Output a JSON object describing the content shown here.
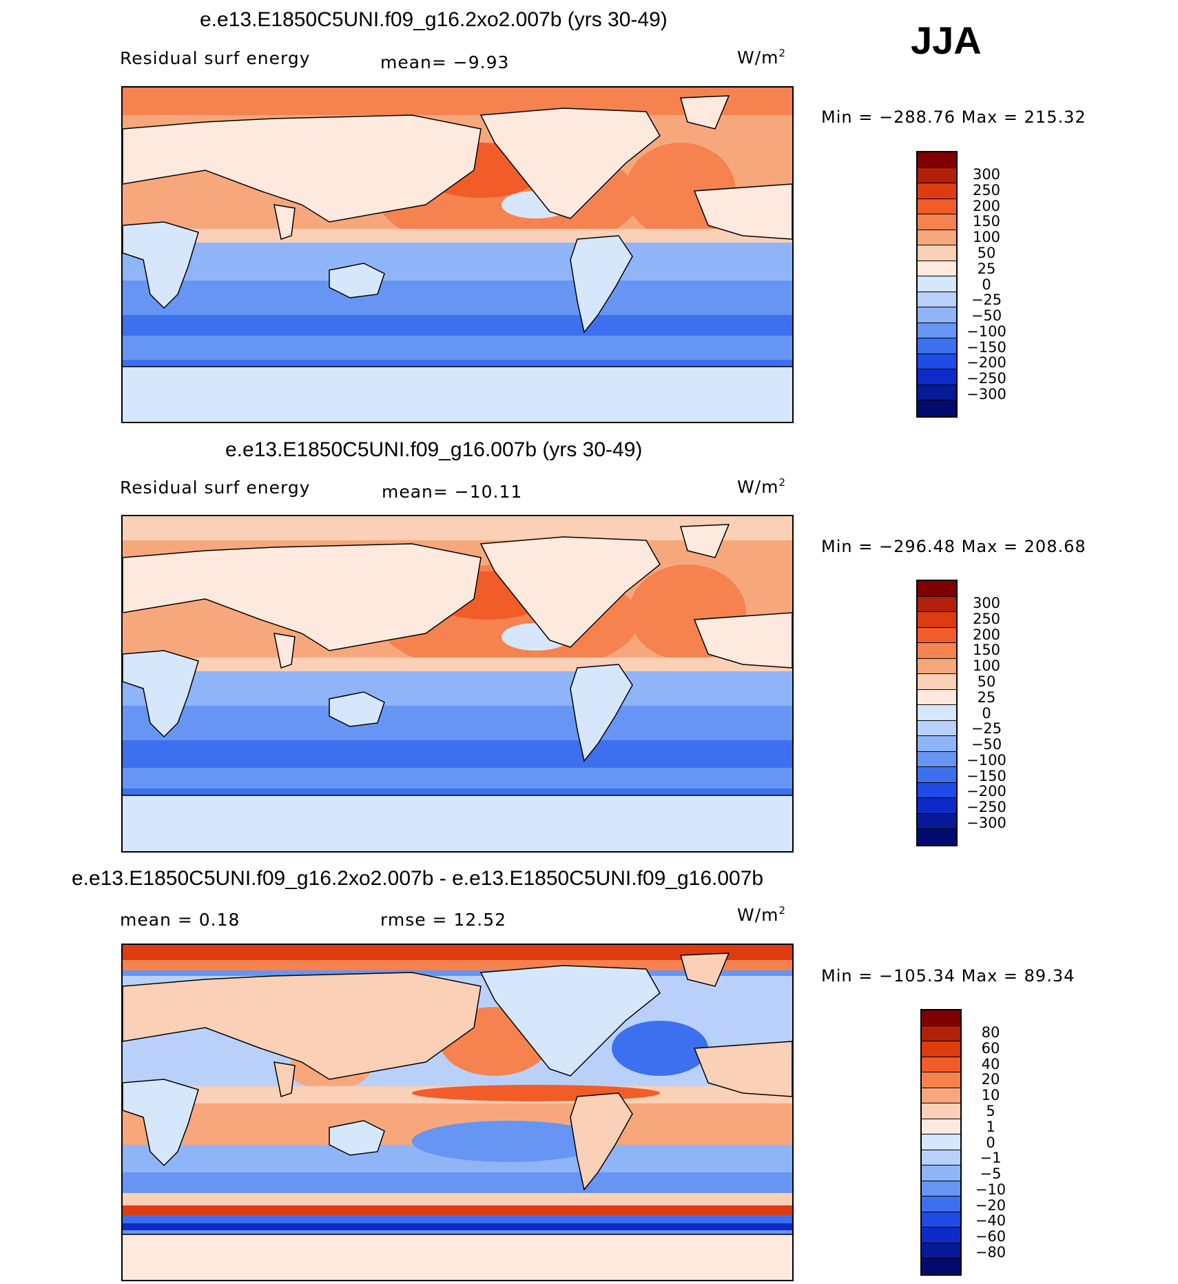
{
  "figure": {
    "season": "JJA"
  },
  "panels": [
    {
      "title": "e.e13.E1850C5UNI.f09_g16.2xo2.007b (yrs 30-49)",
      "field_label": "Residual surf energy",
      "stat": "mean=   −9.93",
      "units_base": "W/m",
      "units_exp": "2",
      "minmax": "Min  =  −288.76  Max  =  215.32",
      "colorbar": {
        "colors": [
          "#800000",
          "#b3200a",
          "#dd3b10",
          "#f25c28",
          "#f5824f",
          "#f7a77c",
          "#fad0b6",
          "#fde9dd",
          "#d6e6fb",
          "#b9d1fa",
          "#8fb4f7",
          "#6695f4",
          "#3d70ef",
          "#1f4ce6",
          "#0c2bc8",
          "#071a98",
          "#020c6e"
        ],
        "labels": [
          "300",
          "250",
          "200",
          "150",
          "100",
          "50",
          "25",
          "0",
          "−25",
          "−50",
          "−100",
          "−150",
          "−200",
          "−250",
          "−300"
        ]
      }
    },
    {
      "title": "e.e13.E1850C5UNI.f09_g16.007b (yrs 30-49)",
      "field_label": "Residual surf energy",
      "stat": "mean= −10.11",
      "units_base": "W/m",
      "units_exp": "2",
      "minmax": "Min  =  −296.48  Max  =  208.68",
      "colorbar": {
        "colors": [
          "#800000",
          "#b3200a",
          "#dd3b10",
          "#f25c28",
          "#f5824f",
          "#f7a77c",
          "#fad0b6",
          "#fde9dd",
          "#d6e6fb",
          "#b9d1fa",
          "#8fb4f7",
          "#6695f4",
          "#3d70ef",
          "#1f4ce6",
          "#0c2bc8",
          "#071a98",
          "#020c6e"
        ],
        "labels": [
          "300",
          "250",
          "200",
          "150",
          "100",
          "50",
          "25",
          "0",
          "−25",
          "−50",
          "−100",
          "−150",
          "−200",
          "−250",
          "−300"
        ]
      }
    },
    {
      "title": "e.e13.E1850C5UNI.f09_g16.2xo2.007b - e.e13.E1850C5UNI.f09_g16.007b",
      "field_label": "mean  =     0.18",
      "stat": "rmse  =    12.52",
      "units_base": "W/m",
      "units_exp": "2",
      "minmax": "Min  =  −105.34  Max  =    89.34",
      "colorbar": {
        "colors": [
          "#800000",
          "#b3200a",
          "#dd3b10",
          "#f25c28",
          "#f5824f",
          "#f7a77c",
          "#fad0b6",
          "#fde9dd",
          "#d6e6fb",
          "#b9d1fa",
          "#8fb4f7",
          "#6695f4",
          "#3d70ef",
          "#1f4ce6",
          "#0c2bc8",
          "#071a98",
          "#020c6e"
        ],
        "labels": [
          "80",
          "60",
          "40",
          "20",
          "10",
          "5",
          "1",
          "0",
          "−1",
          "−5",
          "−10",
          "−20",
          "−40",
          "−60",
          "−80"
        ]
      }
    }
  ],
  "map_colors": {
    "land_warm": "#fde9dd",
    "land_cool": "#d6e6fb",
    "ocean_warm": "#f5824f",
    "ocean_hot": "#f25c28",
    "ocean_mild": "#f7a77c",
    "ocean_cool": "#6695f4",
    "ocean_cold": "#3d70ef",
    "ocean_deep": "#1f4ce6",
    "antarctic": "#d6e6fb",
    "arctic": "#f5824f"
  }
}
